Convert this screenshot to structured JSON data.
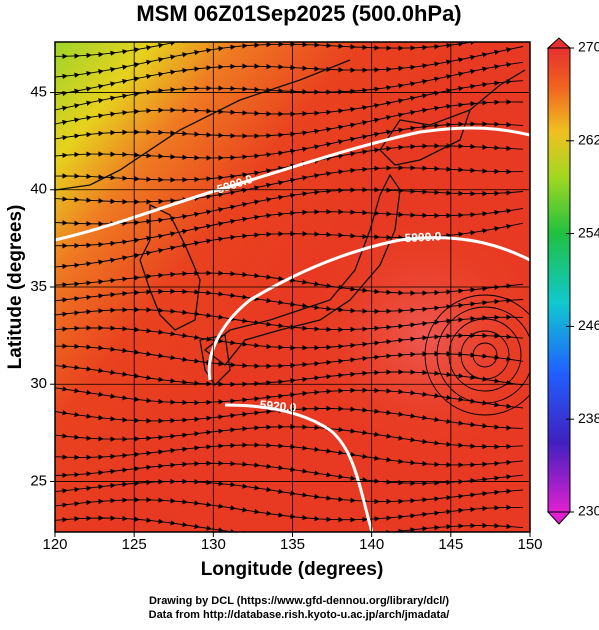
{
  "title": "MSM 06Z01Sep2025 (500.0hPa)",
  "x_axis": {
    "label": "Longitude (degrees)",
    "lim": [
      120,
      150
    ],
    "ticks": [
      120,
      125,
      130,
      135,
      140,
      145,
      150
    ]
  },
  "y_axis": {
    "label": "Latitude  (degrees)",
    "lim": [
      22.4,
      47.6
    ],
    "ticks": [
      25,
      30,
      35,
      40,
      45
    ]
  },
  "colorbar": {
    "lim": [
      230,
      270
    ],
    "ticks": [
      230,
      238,
      246,
      254,
      262,
      270
    ]
  },
  "contour_labels": [
    "5900.0",
    "5900.0",
    "5920.0"
  ],
  "credits": [
    "Drawing by DCL (https://www.gfd-dennou.org/library/dcl/)",
    "Data from http://database.rish.kyoto-u.ac.jp/arch/jmadata/"
  ]
}
